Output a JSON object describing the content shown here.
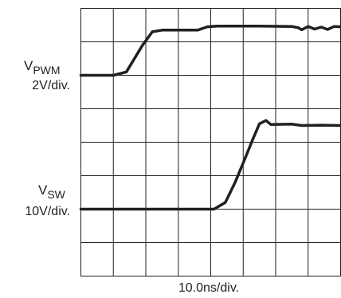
{
  "chart_data": {
    "type": "line",
    "title": "",
    "xlabel": "10.0ns/div.",
    "x_divisions": 8,
    "y_divisions": 8,
    "grid": true,
    "series": [
      {
        "name": "VPWM",
        "label_main": "V",
        "label_sub": "PWM",
        "scale": "2V/div.",
        "color": "#231f20",
        "points": [
          [
            0,
            6
          ],
          [
            1.0,
            6
          ],
          [
            1.4,
            6.1
          ],
          [
            1.9,
            6.9
          ],
          [
            2.2,
            7.3
          ],
          [
            2.5,
            7.35
          ],
          [
            3.3,
            7.35
          ],
          [
            3.6,
            7.35
          ],
          [
            3.9,
            7.45
          ],
          [
            4.2,
            7.47
          ],
          [
            5.5,
            7.47
          ],
          [
            6.5,
            7.46
          ],
          [
            6.7,
            7.42
          ],
          [
            6.8,
            7.36
          ],
          [
            7.0,
            7.46
          ],
          [
            7.2,
            7.38
          ],
          [
            7.4,
            7.44
          ],
          [
            7.6,
            7.37
          ],
          [
            7.8,
            7.46
          ],
          [
            8,
            7.45
          ]
        ]
      },
      {
        "name": "VSW",
        "label_main": "V",
        "label_sub": "SW",
        "scale": "10V/div.",
        "color": "#231f20",
        "points": [
          [
            0,
            2
          ],
          [
            4.1,
            2
          ],
          [
            4.45,
            2.2
          ],
          [
            4.75,
            2.8
          ],
          [
            5.05,
            3.5
          ],
          [
            5.3,
            4.1
          ],
          [
            5.5,
            4.55
          ],
          [
            5.7,
            4.65
          ],
          [
            5.85,
            4.53
          ],
          [
            6.5,
            4.54
          ],
          [
            6.8,
            4.5
          ],
          [
            7.4,
            4.51
          ],
          [
            8,
            4.5
          ]
        ]
      }
    ]
  }
}
